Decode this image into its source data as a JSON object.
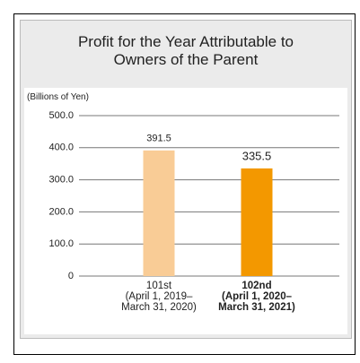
{
  "chart_data": {
    "type": "bar",
    "title": "Profit for the Year Attributable to\nOwners of the Parent",
    "y_axis_label": "(Billions of Yen)",
    "categories": [
      "101st\n(April 1, 2019–\nMarch 31, 2020)",
      "102nd\n(April 1, 2020–\nMarch 31, 2021)"
    ],
    "values": [
      391.5,
      335.5
    ],
    "colors": [
      "#f9cc96",
      "#f39800"
    ],
    "ylim": [
      0,
      500
    ],
    "yticks": [
      0,
      {
        "value": 100,
        "label": "100.0"
      },
      {
        "value": 200,
        "label": "200.0"
      },
      {
        "value": 300,
        "label": "300.0"
      },
      {
        "value": 400,
        "label": "400.0"
      },
      {
        "value": 500,
        "label": "500.0"
      }
    ],
    "grid": true
  }
}
